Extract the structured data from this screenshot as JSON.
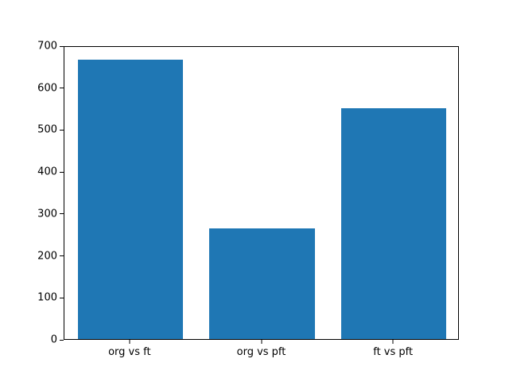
{
  "chart_data": {
    "type": "bar",
    "categories": [
      "org vs ft",
      "org vs pft",
      "ft vs pft"
    ],
    "values": [
      670,
      265,
      553
    ],
    "title": "",
    "xlabel": "",
    "ylabel": "",
    "ylim": [
      0,
      700
    ],
    "yticks": [
      0,
      100,
      200,
      300,
      400,
      500,
      600,
      700
    ],
    "bar_color": "#1f77b4",
    "bar_width_fraction": 0.8,
    "grid": false,
    "legend": false
  }
}
